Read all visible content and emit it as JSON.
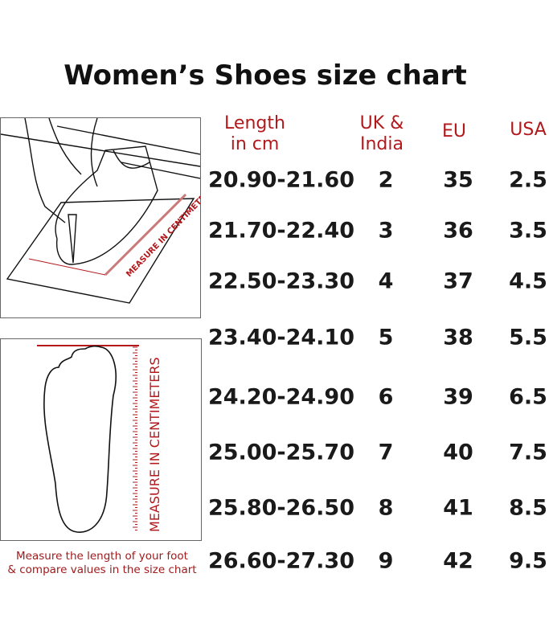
{
  "title": "Women’s Shoes size chart",
  "headers": {
    "length_line1": "Length",
    "length_line2": "in cm",
    "uk_line1": "UK &",
    "uk_line2": "India",
    "eu": "EU",
    "usa": "USA"
  },
  "rows": [
    {
      "length": "20.90-21.60",
      "uk": "2",
      "eu": "35",
      "usa": "2.5"
    },
    {
      "length": "21.70-22.40",
      "uk": "3",
      "eu": "36",
      "usa": "3.5"
    },
    {
      "length": "22.50-23.30",
      "uk": "4",
      "eu": "37",
      "usa": "4.5"
    },
    {
      "length": "23.40-24.10",
      "uk": "5",
      "eu": "38",
      "usa": "5.5"
    },
    {
      "length": "24.20-24.90",
      "uk": "6",
      "eu": "39",
      "usa": "6.5"
    },
    {
      "length": "25.00-25.70",
      "uk": "7",
      "eu": "40",
      "usa": "7.5"
    },
    {
      "length": "25.80-26.50",
      "uk": "8",
      "eu": "41",
      "usa": "8.5"
    },
    {
      "length": "26.60-27.30",
      "uk": "9",
      "eu": "42",
      "usa": "9.5"
    }
  ],
  "illustration": {
    "ruler_label_top": "MEASURE IN CENTIMETERS",
    "ruler_label_bottom": "MEASURE IN CENTIMETERS"
  },
  "caption": {
    "line1": "Measure the length of your foot",
    "line2": "& compare values in the size chart"
  },
  "colors": {
    "accent": "#b3191c",
    "text": "#1a1a1a"
  }
}
